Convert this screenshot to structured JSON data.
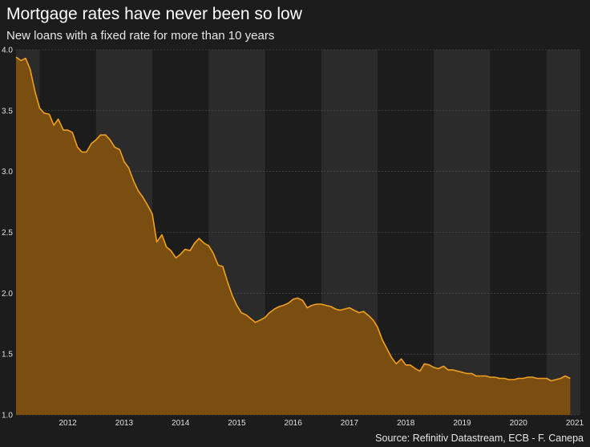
{
  "title": "Mortgage rates have never been so low",
  "subtitle": "New loans with a fixed rate for more than 10 years",
  "source": "Source: Refinitiv Datastream, ECB - F. Canepa",
  "colors": {
    "background": "#1c1c1c",
    "band_light": "#2b2b2b",
    "band_dark": "#1c1c1c",
    "line": "#f0a01e",
    "area_fill": "#7a4e10",
    "gridline": "#555555"
  },
  "chart_data": {
    "type": "area",
    "title": "Mortgage rates have never been so low",
    "subtitle": "New loans with a fixed rate for more than 10 years",
    "xlabel": "",
    "ylabel": "",
    "ylim": [
      1.0,
      4.0
    ],
    "xlim": [
      2011.58,
      2021.6
    ],
    "yticks": [
      "1.0",
      "1.5",
      "2.0",
      "2.5",
      "3.0",
      "3.5",
      "4.0"
    ],
    "xticks": [
      "2012",
      "2013",
      "2014",
      "2015",
      "2016",
      "2017",
      "2018",
      "2019",
      "2020",
      "2021"
    ],
    "grid": true,
    "legend": "none",
    "series": [
      {
        "x": [
          2011.58,
          2011.67,
          2011.75,
          2011.83,
          2011.92,
          2012.0,
          2012.08,
          2012.17,
          2012.25,
          2012.33,
          2012.42,
          2012.5,
          2012.58,
          2012.67,
          2012.75,
          2012.83,
          2012.92,
          2013.0,
          2013.08,
          2013.17,
          2013.25,
          2013.33,
          2013.42,
          2013.5,
          2013.58,
          2013.67,
          2013.75,
          2013.83,
          2013.92,
          2014.0,
          2014.08,
          2014.17,
          2014.25,
          2014.33,
          2014.42,
          2014.5,
          2014.58,
          2014.67,
          2014.75,
          2014.83,
          2014.92,
          2015.0,
          2015.08,
          2015.17,
          2015.25,
          2015.33,
          2015.42,
          2015.5,
          2015.58,
          2015.67,
          2015.75,
          2015.83,
          2015.92,
          2016.0,
          2016.08,
          2016.17,
          2016.25,
          2016.33,
          2016.42,
          2016.5,
          2016.58,
          2016.67,
          2016.75,
          2016.83,
          2016.92,
          2017.0,
          2017.08,
          2017.17,
          2017.25,
          2017.33,
          2017.42,
          2017.5,
          2017.58,
          2017.67,
          2017.75,
          2017.83,
          2017.92,
          2018.0,
          2018.08,
          2018.17,
          2018.25,
          2018.33,
          2018.42,
          2018.5,
          2018.58,
          2018.67,
          2018.75,
          2018.83,
          2018.92,
          2019.0,
          2019.08,
          2019.17,
          2019.25,
          2019.33,
          2019.42,
          2019.5,
          2019.58,
          2019.67,
          2019.75,
          2019.83,
          2019.92,
          2020.0,
          2020.08,
          2020.17,
          2020.25,
          2020.33,
          2020.42,
          2020.5,
          2020.58,
          2020.67,
          2020.75,
          2020.83,
          2020.92,
          2021.0,
          2021.08,
          2021.17,
          2021.25,
          2021.33,
          2021.42
        ],
        "y": [
          3.94,
          3.91,
          3.93,
          3.84,
          3.65,
          3.52,
          3.48,
          3.47,
          3.38,
          3.43,
          3.34,
          3.34,
          3.32,
          3.2,
          3.16,
          3.16,
          3.23,
          3.26,
          3.3,
          3.3,
          3.26,
          3.2,
          3.18,
          3.08,
          3.03,
          2.92,
          2.84,
          2.79,
          2.72,
          2.65,
          2.42,
          2.48,
          2.38,
          2.35,
          2.29,
          2.32,
          2.36,
          2.35,
          2.41,
          2.45,
          2.41,
          2.39,
          2.33,
          2.23,
          2.22,
          2.1,
          1.98,
          1.9,
          1.84,
          1.82,
          1.79,
          1.76,
          1.78,
          1.8,
          1.84,
          1.87,
          1.89,
          1.9,
          1.92,
          1.95,
          1.96,
          1.94,
          1.88,
          1.9,
          1.91,
          1.91,
          1.9,
          1.89,
          1.87,
          1.86,
          1.87,
          1.88,
          1.86,
          1.84,
          1.85,
          1.82,
          1.78,
          1.72,
          1.62,
          1.54,
          1.47,
          1.42,
          1.46,
          1.41,
          1.41,
          1.38,
          1.36,
          1.42,
          1.41,
          1.39,
          1.38,
          1.4,
          1.37,
          1.37,
          1.36,
          1.35,
          1.34,
          1.34,
          1.32,
          1.32,
          1.32,
          1.31,
          1.31,
          1.3,
          1.3,
          1.29,
          1.29,
          1.3,
          1.3,
          1.31,
          1.31,
          1.3,
          1.3,
          1.3,
          1.28,
          1.29,
          1.3,
          1.32,
          1.3
        ]
      }
    ]
  }
}
